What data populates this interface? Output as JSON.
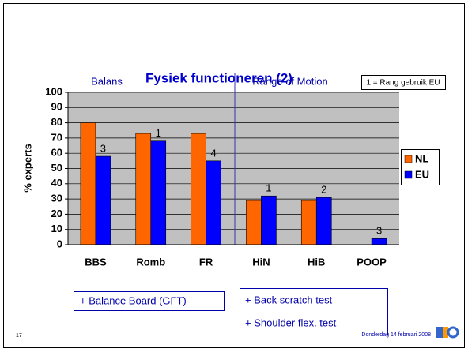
{
  "chart_data": {
    "type": "bar",
    "title": "Fysiek functioneren (2)",
    "y_label": "% experts",
    "categories": [
      "BBS",
      "Romb",
      "FR",
      "HiN",
      "HiB",
      "POOP"
    ],
    "series": [
      {
        "name": "NL",
        "color": "#ff6600",
        "values": [
          80,
          73,
          73,
          29,
          29,
          0
        ]
      },
      {
        "name": "EU",
        "color": "#0000ff",
        "values": [
          58,
          68,
          55,
          32,
          31,
          4
        ]
      }
    ],
    "rank_labels": [
      "3",
      "1",
      "4",
      "1",
      "2",
      "3"
    ],
    "rank_note": "1 = Rang gebruik EU",
    "section_labels": [
      "Balans",
      "Range of Motion"
    ],
    "ylim": [
      0,
      100
    ],
    "yticks": [
      0,
      10,
      20,
      30,
      40,
      50,
      60,
      70,
      80,
      90,
      100
    ],
    "grid": true,
    "legend": "right"
  },
  "notes": [
    "+ Balance Board (GFT)",
    "+ Back scratch test",
    "+ Shoulder flex. test"
  ],
  "footer": {
    "page": "17",
    "date": "Donderdag 14 februari 2008"
  }
}
